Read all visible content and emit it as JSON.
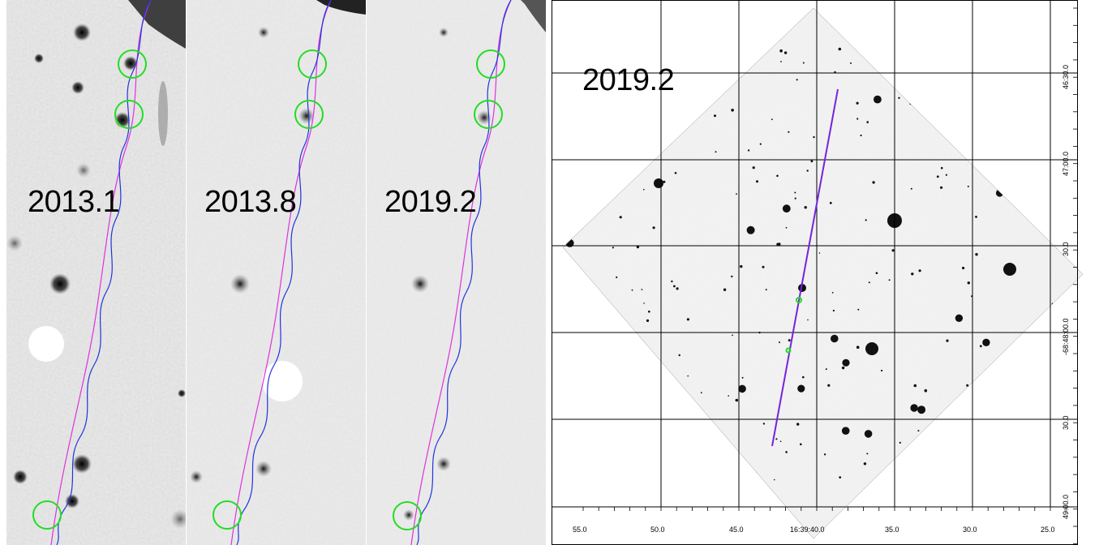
{
  "panels": [
    {
      "epoch": "2013.1"
    },
    {
      "epoch": "2013.8"
    },
    {
      "epoch": "2019.2"
    },
    {
      "epoch": "2019.2"
    }
  ],
  "ra_ticks": [
    "55.0",
    "50.0",
    "45.0",
    "16:39:40.0",
    "35.0",
    "30.0",
    "25.0"
  ],
  "dec_ticks": [
    "46:30.0",
    "47:00.0",
    "30.0",
    "-68:48:00.0",
    "30.0",
    "49:00.0"
  ],
  "colors": {
    "circle": "#22dd22",
    "blue_track": "#2233dd",
    "magenta_track": "#dd33dd",
    "purple_track": "#7722dd"
  }
}
